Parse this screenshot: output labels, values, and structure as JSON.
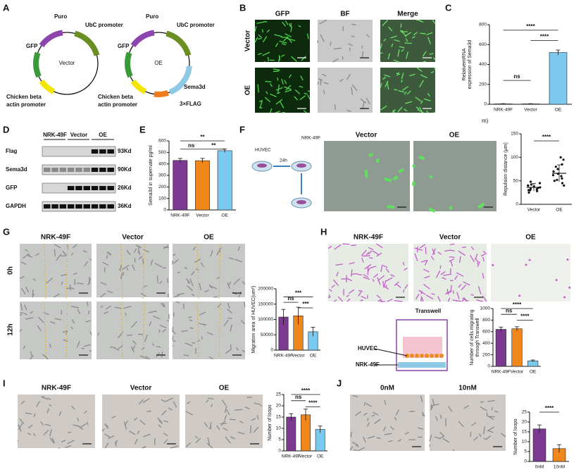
{
  "panel_labels": [
    "A",
    "B",
    "C",
    "D",
    "E",
    "F",
    "G",
    "H",
    "I",
    "J"
  ],
  "plasmids": [
    {
      "name": "Vector",
      "puro": "Puro",
      "ubc": "UbC promoter",
      "gfp": "GFP",
      "cba": [
        "Chicken beta",
        "actin promoter"
      ]
    },
    {
      "name": "OE",
      "puro": "Puro",
      "ubc": "UbC promoter",
      "gfp": "GFP",
      "cba": [
        "Chicken beta",
        "actin promoter"
      ],
      "sema3d": "Sema3d",
      "flag": "3×FLAG"
    }
  ],
  "panel_b": {
    "columns": [
      "GFP",
      "BF",
      "Merge"
    ],
    "rows": [
      "Vector",
      "OE"
    ]
  },
  "panel_c_note": "m)",
  "panel_d": {
    "columns": [
      "NRK-49F",
      "Vector",
      "OE"
    ],
    "rows": [
      "Flag",
      "Sema3d",
      "GFP",
      "GAPDH"
    ],
    "sizes": [
      "93Kd",
      "90Kd",
      "26Kd",
      "36Kd"
    ]
  },
  "panel_f": {
    "schematic": {
      "huvec": "HUVEC",
      "time": "24h",
      "nrk": "NRK-49F"
    },
    "columns": [
      "Vector",
      "OE"
    ]
  },
  "panel_g": {
    "columns": [
      "NRK-49F",
      "Vector",
      "OE"
    ],
    "rows": [
      "0h",
      "12h"
    ]
  },
  "panel_h": {
    "columns": [
      "NRK-49F",
      "Vector",
      "OE"
    ],
    "transwell": "Transwell",
    "huvec": "HUVEC",
    "nrk": "NRK-49F"
  },
  "panel_i": {
    "columns": [
      "NRK-49F",
      "Vector",
      "OE"
    ]
  },
  "panel_j": {
    "columns": [
      "0nM",
      "10nM"
    ]
  },
  "chart_data": [
    {
      "type": "bar",
      "ylabel": [
        "RelativemRNA",
        "expression of Sema3d"
      ],
      "categories": [
        "NRK-49F",
        "Vector",
        "OE"
      ],
      "values": [
        4,
        4,
        520
      ],
      "errors": [
        2,
        2,
        25
      ],
      "colors": [
        "#7b3a8f",
        "#f0871c",
        "#7cc9f0"
      ],
      "ylim": [
        0,
        800
      ],
      "yticks": [
        0,
        200,
        400,
        600,
        800
      ],
      "significance": [
        "****",
        "****",
        "ns"
      ]
    },
    {
      "type": "bar",
      "ylabel": [
        "Sema3d in supernate  pg/ml"
      ],
      "categories": [
        "NRK-49F",
        "Vector",
        "OE"
      ],
      "values": [
        430,
        428,
        515
      ],
      "errors": [
        18,
        20,
        15
      ],
      "colors": [
        "#7b3a8f",
        "#f0871c",
        "#7cc9f0"
      ],
      "ylim": [
        0,
        600
      ],
      "yticks": [
        0,
        100,
        200,
        300,
        400,
        500,
        600
      ],
      "significance": [
        "**",
        "ns",
        "**"
      ]
    },
    {
      "type": "dot",
      "ylabel": [
        "Repulsion distance (μm)"
      ],
      "categories": [
        "Vector",
        "OE"
      ],
      "values": [
        36,
        66
      ],
      "errors": [
        8,
        18
      ],
      "points": [
        [
          25,
          28,
          30,
          32,
          33,
          35,
          36,
          38,
          40,
          42,
          45,
          48,
          30,
          40
        ],
        [
          40,
          45,
          50,
          52,
          55,
          60,
          62,
          65,
          70,
          75,
          80,
          85,
          95,
          100
        ]
      ],
      "colors": [
        "#222",
        "#222"
      ],
      "ylim": [
        0,
        150
      ],
      "yticks": [
        0,
        50,
        100,
        150
      ],
      "significance": [
        "****"
      ]
    },
    {
      "type": "bar",
      "ylabel": [
        "Migration area of HUVEC(um²)"
      ],
      "categories": [
        "NRK-49F",
        "Vector",
        "OE"
      ],
      "values": [
        108000,
        112000,
        60000
      ],
      "errors": [
        25000,
        28000,
        15000
      ],
      "colors": [
        "#7b3a8f",
        "#f0871c",
        "#7cc9f0"
      ],
      "ylim": [
        0,
        200000
      ],
      "yticks": [
        0,
        50000,
        100000,
        150000,
        200000
      ],
      "significance": [
        "***",
        "ns",
        "***"
      ]
    },
    {
      "type": "bar",
      "ylabel": [
        "Number of cells migrating",
        "through Transwell"
      ],
      "categories": [
        "NRK-49F",
        "Vector",
        "OE"
      ],
      "values": [
        640,
        650,
        95
      ],
      "errors": [
        40,
        35,
        15
      ],
      "colors": [
        "#7b3a8f",
        "#f0871c",
        "#7cc9f0"
      ],
      "ylim": [
        0,
        1000
      ],
      "yticks": [
        0,
        200,
        400,
        600,
        800,
        1000
      ],
      "significance": [
        "****",
        "ns",
        "****"
      ]
    },
    {
      "type": "bar",
      "ylabel": [
        "Number of loops"
      ],
      "categories": [
        "NRK-49F",
        "Vector",
        "OE"
      ],
      "values": [
        15,
        16,
        9.5
      ],
      "errors": [
        1.5,
        2.5,
        1.5
      ],
      "colors": [
        "#7b3a8f",
        "#f0871c",
        "#7cc9f0"
      ],
      "ylim": [
        0,
        25
      ],
      "yticks": [
        0,
        5,
        10,
        15,
        20,
        25
      ],
      "significance": [
        "****",
        "ns",
        "****"
      ]
    },
    {
      "type": "bar",
      "ylabel": [
        "Number of loops"
      ],
      "categories": [
        "0nM",
        "10nM"
      ],
      "values": [
        16.5,
        6.5
      ],
      "errors": [
        2,
        2
      ],
      "colors": [
        "#7b3a8f",
        "#f0871c"
      ],
      "ylim": [
        0,
        25
      ],
      "yticks": [
        0,
        5,
        10,
        15,
        20,
        25
      ],
      "significance": [
        "****"
      ]
    }
  ]
}
